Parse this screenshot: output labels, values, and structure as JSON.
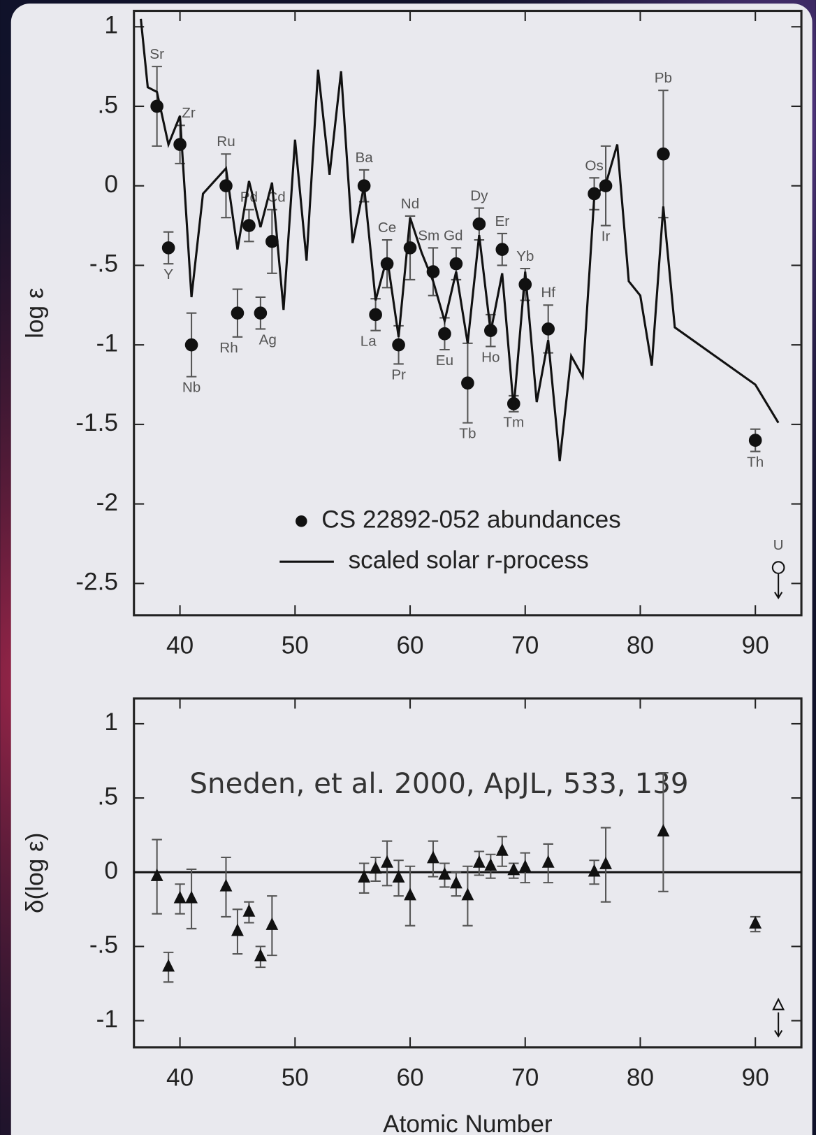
{
  "chart_data": [
    {
      "type": "scatter",
      "y_label": "log ε",
      "xlim": [
        36,
        94
      ],
      "ylim": [
        -2.7,
        1.1
      ],
      "xticks": [
        40,
        50,
        60,
        70,
        80,
        90
      ],
      "yticks": [
        1,
        {
          "value": 0.5,
          "label": ".5"
        },
        0,
        {
          "value": -0.5,
          "label": "-.5"
        },
        -1,
        -1.5,
        -2,
        -2.5
      ],
      "legend": "lower center",
      "series": [
        {
          "name": "CS 22892-052 abundances",
          "type": "errorbar",
          "marker": "circle",
          "color": "#111111",
          "x": [
            38,
            39,
            40,
            41,
            44,
            45,
            46,
            47,
            48,
            56,
            57,
            58,
            59,
            60,
            62,
            63,
            64,
            65,
            66,
            67,
            68,
            69,
            70,
            72,
            76,
            77,
            82,
            90
          ],
          "values": [
            0.5,
            -0.39,
            0.26,
            -1.0,
            0.0,
            -0.8,
            -0.25,
            -0.8,
            -0.35,
            0.0,
            -0.81,
            -0.49,
            -1.0,
            -0.39,
            -0.54,
            -0.93,
            -0.49,
            -1.24,
            -0.24,
            -0.91,
            -0.4,
            -1.37,
            -0.62,
            -0.9,
            -0.05,
            0.0,
            0.2,
            -1.6
          ],
          "errors": [
            0.25,
            0.1,
            0.12,
            0.2,
            0.2,
            0.15,
            0.1,
            0.1,
            0.2,
            0.1,
            0.1,
            0.15,
            0.12,
            0.2,
            0.15,
            0.1,
            0.1,
            0.25,
            0.1,
            0.1,
            0.1,
            0.05,
            0.1,
            0.15,
            0.1,
            0.25,
            0.4,
            0.07
          ],
          "labels": [
            "Sr",
            "Y",
            "Zr",
            "Nb",
            "Ru",
            "Rh",
            "Pd",
            "Ag",
            "Cd",
            "Ba",
            "La",
            "Ce",
            "Pr",
            "Nd",
            "Sm",
            "Eu",
            "Gd",
            "Tb",
            "Dy",
            "Ho",
            "Er",
            "Tm",
            "Yb",
            "Hf",
            "Os",
            "Ir",
            "Pb",
            "Th"
          ]
        },
        {
          "name": "scaled solar r-process",
          "type": "line",
          "color": "#111111",
          "x": [
            36.6,
            37.2,
            38,
            39,
            40,
            41,
            42,
            44,
            45,
            46,
            47,
            48,
            49,
            50,
            51,
            52,
            53,
            54,
            55,
            56,
            57,
            58,
            59,
            60,
            61,
            62,
            63,
            64,
            65,
            66,
            67,
            68,
            69,
            70,
            71,
            72,
            73,
            74,
            75,
            76,
            77,
            78,
            79,
            80,
            81,
            82,
            83,
            90,
            92
          ],
          "values": [
            1.05,
            0.62,
            0.59,
            0.26,
            0.44,
            -0.7,
            -0.05,
            0.11,
            -0.4,
            0.03,
            -0.26,
            0.02,
            -0.78,
            0.29,
            -0.47,
            0.73,
            0.07,
            0.72,
            -0.36,
            0.0,
            -0.72,
            -0.45,
            -0.95,
            -0.2,
            -0.42,
            -0.6,
            -0.85,
            -0.54,
            -0.99,
            -0.31,
            -0.92,
            -0.55,
            -1.4,
            -0.54,
            -1.36,
            -0.97,
            -1.73,
            -1.07,
            -1.2,
            -0.07,
            0.01,
            0.26,
            -0.6,
            -0.69,
            -1.13,
            -0.13,
            -0.89,
            -1.25,
            -1.49
          ]
        }
      ],
      "upper_limit": {
        "x": 92,
        "value": -2.4,
        "label": "U"
      }
    },
    {
      "type": "scatter",
      "y_label": "δ(log ε)",
      "x_label": "Atomic Number",
      "annotation": "Sneden, et al. 2000, ApJL, 533, 139",
      "xlim": [
        36,
        94
      ],
      "ylim": [
        -1.18,
        1.17
      ],
      "xticks": [
        40,
        50,
        60,
        70,
        80,
        90
      ],
      "yticks": [
        1,
        {
          "value": 0.5,
          "label": ".5"
        },
        0,
        {
          "value": -0.5,
          "label": "-.5"
        },
        -1
      ],
      "reference_line": 0,
      "marker": "triangle",
      "color": "#111111",
      "x": [
        38,
        39,
        40,
        41,
        44,
        45,
        46,
        47,
        48,
        56,
        57,
        58,
        59,
        60,
        62,
        63,
        64,
        65,
        66,
        67,
        68,
        69,
        70,
        72,
        76,
        77,
        82,
        90
      ],
      "values": [
        -0.03,
        -0.64,
        -0.18,
        -0.18,
        -0.1,
        -0.4,
        -0.27,
        -0.57,
        -0.36,
        -0.04,
        0.02,
        0.06,
        -0.04,
        -0.16,
        0.09,
        -0.02,
        -0.08,
        -0.16,
        0.06,
        0.04,
        0.14,
        0.01,
        0.03,
        0.06,
        0.0,
        0.05,
        0.27,
        -0.35
      ],
      "errors": [
        0.25,
        0.1,
        0.1,
        0.2,
        0.2,
        0.15,
        0.07,
        0.07,
        0.2,
        0.1,
        0.08,
        0.15,
        0.12,
        0.2,
        0.12,
        0.08,
        0.08,
        0.2,
        0.08,
        0.08,
        0.1,
        0.05,
        0.1,
        0.13,
        0.08,
        0.25,
        0.4,
        0.05
      ],
      "upper_limit": {
        "x": 92,
        "value": -0.9
      }
    }
  ]
}
